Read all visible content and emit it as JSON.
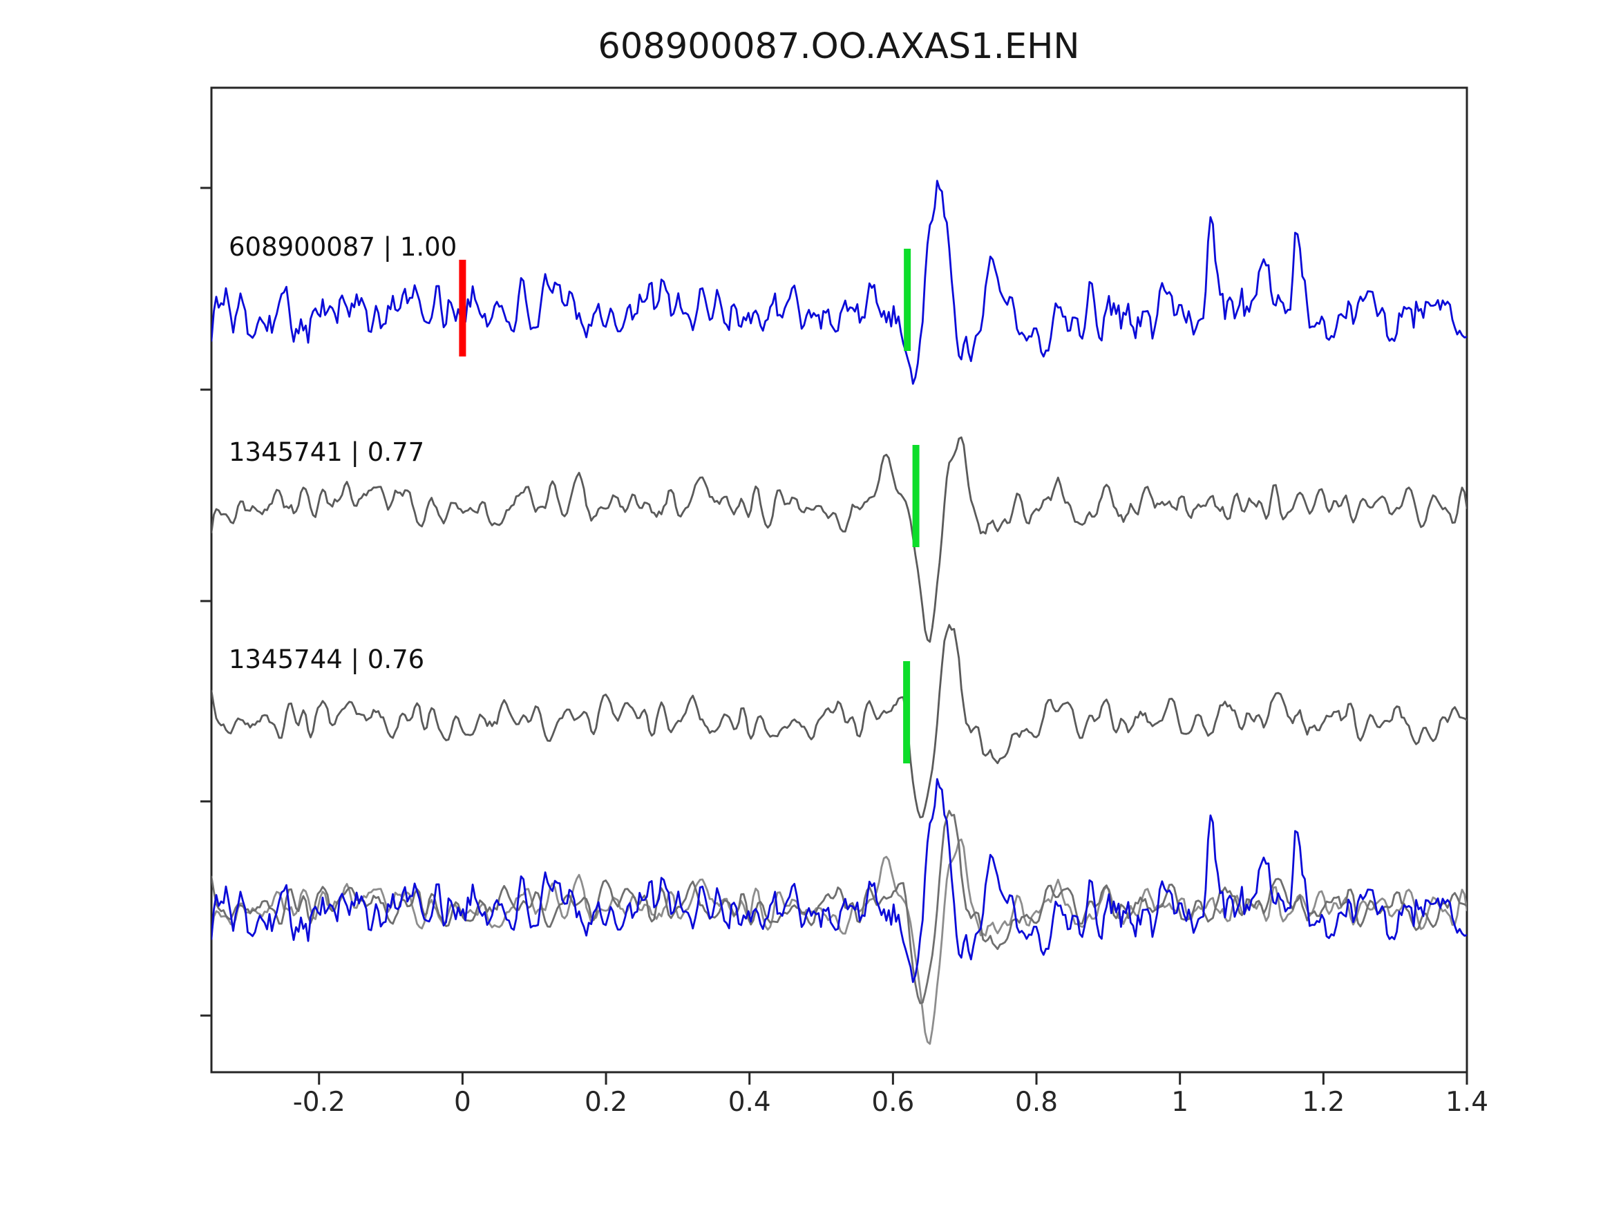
{
  "title": "608900087.OO.AXAS1.EHN",
  "chart_data": {
    "type": "line",
    "title": "608900087.OO.AXAS1.EHN",
    "subtitle": "",
    "xlabel": "",
    "ylabel": "",
    "x_range": [
      -0.35,
      1.4
    ],
    "x_ticks": [
      -0.2,
      0,
      0.2,
      0.4,
      0.6,
      0.8,
      1,
      1.2,
      1.4
    ],
    "x_tick_labels": [
      "-0.2",
      "0",
      "0.2",
      "0.4",
      "0.6",
      "0.8",
      "1",
      "1.2",
      "1.4"
    ],
    "grid": false,
    "legend": "none",
    "colors": {
      "template": "#0b0bd8",
      "detection": "#5a5a5a",
      "overlay_gray_1": "#8d8d8d",
      "overlay_gray_2": "#6f6f6f",
      "pick_marker": "#0ddd2a",
      "origin_marker": "#ff0000",
      "axis": "#262626"
    },
    "traces": [
      {
        "id": "template",
        "label": "608900087 | 1.00",
        "event_id": "608900087",
        "correlation": 1.0,
        "row": 0,
        "color_key": "template",
        "pick_x": 0.62,
        "origin_marker_x": 0.0
      },
      {
        "id": "det1",
        "label": "1345741 | 0.77",
        "event_id": "1345741",
        "correlation": 0.77,
        "row": 1,
        "color_key": "detection",
        "pick_x": 0.632
      },
      {
        "id": "det2",
        "label": "1345744 | 0.76",
        "event_id": "1345744",
        "correlation": 0.76,
        "row": 2,
        "color_key": "detection",
        "pick_x": 0.619
      },
      {
        "id": "overlay",
        "label": "",
        "row": 3,
        "description": "superposition of template and both detections aligned on pick"
      }
    ],
    "waveform_synthesis": {
      "n_points": 520,
      "series": [
        {
          "trace": "template",
          "seed": 101,
          "noise_amp": 62,
          "smooth_passes": 1,
          "events": [
            {
              "x": 0.622,
              "amp": -115,
              "w": 0.011
            },
            {
              "x": 0.664,
              "amp": 170,
              "w": 0.013
            },
            {
              "x": 0.703,
              "amp": -75,
              "w": 0.012
            },
            {
              "x": 0.745,
              "amp": 85,
              "w": 0.014
            },
            {
              "x": 0.792,
              "amp": -55,
              "w": 0.018
            },
            {
              "x": 1.045,
              "amp": 125,
              "w": 0.006
            },
            {
              "x": 1.115,
              "amp": 88,
              "w": 0.006
            },
            {
              "x": 1.163,
              "amp": 115,
              "w": 0.006
            }
          ]
        },
        {
          "trace": "det1",
          "seed": 202,
          "noise_amp": 52,
          "smooth_passes": 2,
          "events": [
            {
              "x": 0.59,
              "amp": 48,
              "w": 0.016
            },
            {
              "x": 0.649,
              "amp": -172,
              "w": 0.014
            },
            {
              "x": 0.691,
              "amp": 110,
              "w": 0.014
            },
            {
              "x": 0.737,
              "amp": -45,
              "w": 0.018
            }
          ]
        },
        {
          "trace": "det2",
          "seed": 303,
          "noise_amp": 52,
          "smooth_passes": 2,
          "events": [
            {
              "x": 0.598,
              "amp": 42,
              "w": 0.014
            },
            {
              "x": 0.641,
              "amp": -120,
              "w": 0.013
            },
            {
              "x": 0.681,
              "amp": 152,
              "w": 0.013
            },
            {
              "x": 0.726,
              "amp": -45,
              "w": 0.018
            }
          ]
        }
      ],
      "overlay_components": [
        {
          "ref": "det1",
          "color_key": "overlay_gray_1"
        },
        {
          "ref": "det2",
          "color_key": "overlay_gray_2"
        },
        {
          "ref": "template",
          "color_key": "template"
        }
      ]
    }
  }
}
